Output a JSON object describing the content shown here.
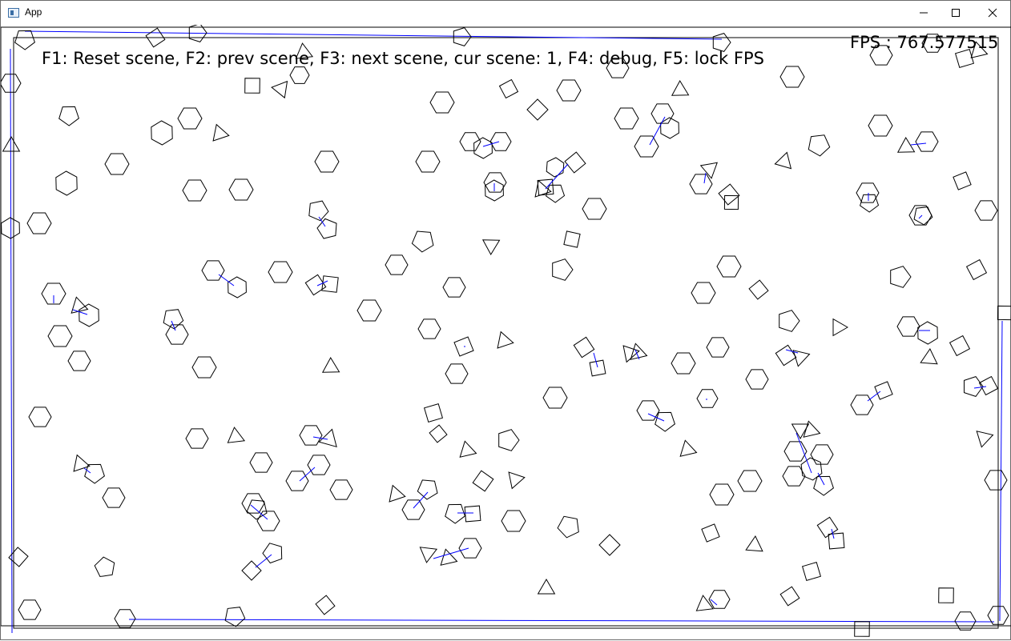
{
  "window": {
    "title": "App",
    "icon": "app-window-icon",
    "controls": {
      "minimize": "minimize-icon",
      "maximize": "maximize-icon",
      "close": "close-icon"
    }
  },
  "overlay": {
    "help": "F1: Reset scene, F2: prev scene, F3: next scene, cur scene: 1, F4: debug, F5: lock FPS",
    "fps": "FPS : 767.577515"
  },
  "scene": {
    "shape_color": "#000000",
    "debug_line_color": "#0000ff",
    "boundary_color": "#000000"
  }
}
